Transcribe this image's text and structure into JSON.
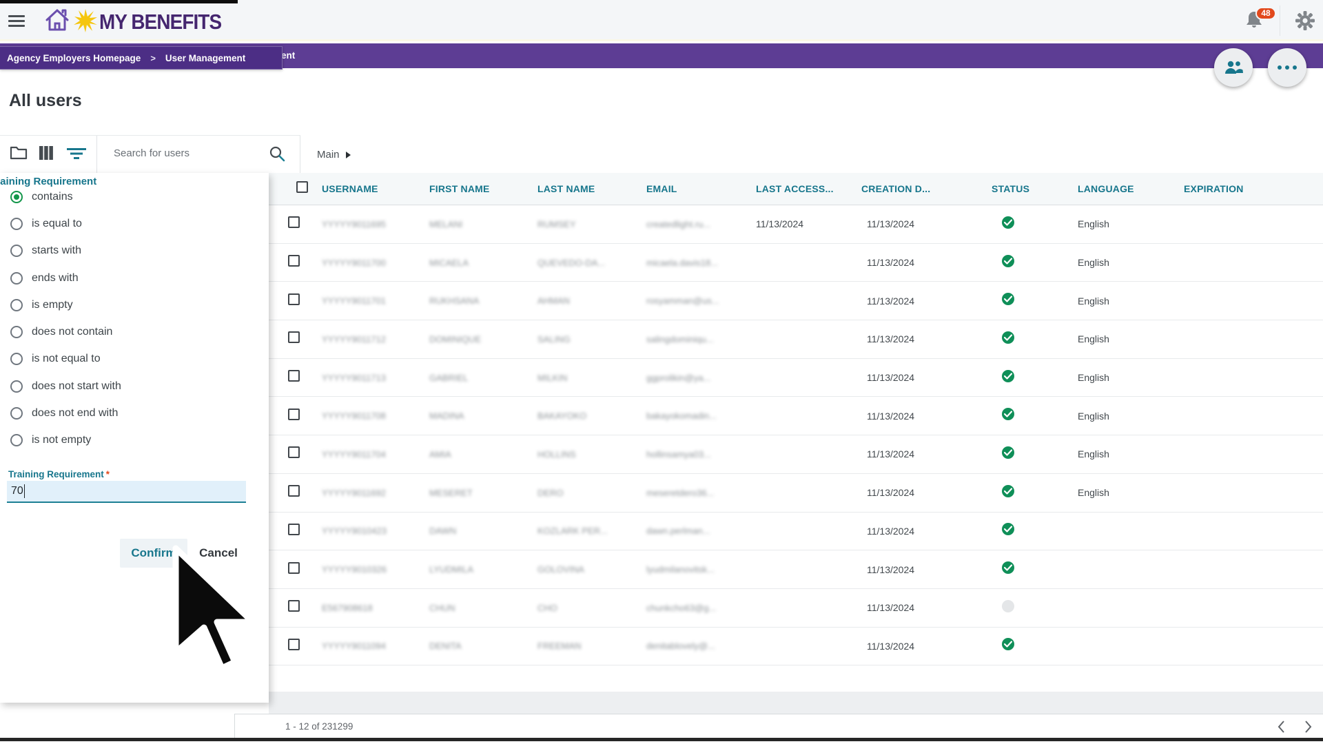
{
  "app": {
    "logo_text": "MY BENEFITS",
    "notification_count": "48"
  },
  "breadcrumb": {
    "bar_remnant": "ent",
    "tooltip": {
      "items": [
        "Agency Employers Homepage",
        "User Management"
      ],
      "separator": ">"
    }
  },
  "page": {
    "title": "All users"
  },
  "toolbar": {
    "search_placeholder": "Search for users",
    "view_label": "Main"
  },
  "filter_panel": {
    "title": "Training Requirement",
    "options": [
      {
        "label": "contains",
        "selected": true
      },
      {
        "label": "is equal to",
        "selected": false
      },
      {
        "label": "starts with",
        "selected": false
      },
      {
        "label": "ends with",
        "selected": false
      },
      {
        "label": "is empty",
        "selected": false
      },
      {
        "label": "does not contain",
        "selected": false
      },
      {
        "label": "is not equal to",
        "selected": false
      },
      {
        "label": "does not start with",
        "selected": false
      },
      {
        "label": "does not end with",
        "selected": false
      },
      {
        "label": "is not empty",
        "selected": false
      }
    ],
    "field_label": "Training Requirement",
    "field_required": "*",
    "field_value": "70",
    "confirm_label": "Confirm",
    "cancel_label": "Cancel"
  },
  "table": {
    "columns": [
      "USERNAME",
      "FIRST NAME",
      "LAST NAME",
      "EMAIL",
      "LAST ACCESS...",
      "CREATION D...",
      "STATUS",
      "LANGUAGE",
      "EXPIRATION"
    ],
    "rows": [
      {
        "username": "YYYYY9011695",
        "first_name": "MELANI",
        "last_name": "RUMSEY",
        "email": "createdlight.ru...",
        "last_access": "11/13/2024",
        "creation_date": "11/13/2024",
        "status": "active",
        "language": "English",
        "expiration": ""
      },
      {
        "username": "YYYYY9011700",
        "first_name": "MICAELA",
        "last_name": "QUEVEDO-DA...",
        "email": "micaela.davis18...",
        "last_access": "",
        "creation_date": "11/13/2024",
        "status": "active",
        "language": "English",
        "expiration": ""
      },
      {
        "username": "YYYYY9011701",
        "first_name": "RUKHSANA",
        "last_name": "AHMAN",
        "email": "rosyamman@us...",
        "last_access": "",
        "creation_date": "11/13/2024",
        "status": "active",
        "language": "English",
        "expiration": ""
      },
      {
        "username": "YYYYY9011712",
        "first_name": "DOMINIQUE",
        "last_name": "SALING",
        "email": "salingdominiqu...",
        "last_access": "",
        "creation_date": "11/13/2024",
        "status": "active",
        "language": "English",
        "expiration": ""
      },
      {
        "username": "YYYYY9011713",
        "first_name": "GABRIEL",
        "last_name": "MILKIN",
        "email": "ggprolikin@ya...",
        "last_access": "",
        "creation_date": "11/13/2024",
        "status": "active",
        "language": "English",
        "expiration": ""
      },
      {
        "username": "YYYYY9011708",
        "first_name": "MADINA",
        "last_name": "BAKAYOKO",
        "email": "bakayokomadin...",
        "last_access": "",
        "creation_date": "11/13/2024",
        "status": "active",
        "language": "English",
        "expiration": ""
      },
      {
        "username": "YYYYY9011704",
        "first_name": "AMIA",
        "last_name": "HOLLINS",
        "email": "hollinsamya03...",
        "last_access": "",
        "creation_date": "11/13/2024",
        "status": "active",
        "language": "English",
        "expiration": ""
      },
      {
        "username": "YYYYY9011692",
        "first_name": "MESERET",
        "last_name": "DERO",
        "email": "meseretdero36...",
        "last_access": "",
        "creation_date": "11/13/2024",
        "status": "active",
        "language": "English",
        "expiration": ""
      },
      {
        "username": "YYYYY9010423",
        "first_name": "DAWN",
        "last_name": "KOZLARK PER...",
        "email": "dawn.perlman...",
        "last_access": "",
        "creation_date": "11/13/2024",
        "status": "active",
        "language": "",
        "expiration": ""
      },
      {
        "username": "YYYYY9010326",
        "first_name": "LYUDMILA",
        "last_name": "GOLOVINA",
        "email": "lyudmilanovitsk...",
        "last_access": "",
        "creation_date": "11/13/2024",
        "status": "active",
        "language": "",
        "expiration": ""
      },
      {
        "username": "E567908618",
        "first_name": "CHUN",
        "last_name": "CHO",
        "email": "chunkcho63@g...",
        "last_access": "",
        "creation_date": "11/13/2024",
        "status": "inactive",
        "language": "",
        "expiration": ""
      },
      {
        "username": "YYYYY9011094",
        "first_name": "DENITA",
        "last_name": "FREEMAN",
        "email": "denitablovely@...",
        "last_access": "",
        "creation_date": "11/13/2024",
        "status": "active",
        "language": "",
        "expiration": ""
      }
    ]
  },
  "footer": {
    "range_label": "1 - 12 of 231299"
  },
  "colors": {
    "accent_purple": "#5d3d94",
    "accent_teal": "#17768c",
    "status_green": "#0f8f58",
    "badge_orange": "#e2491c",
    "selected_radio_green": "#13964a"
  }
}
